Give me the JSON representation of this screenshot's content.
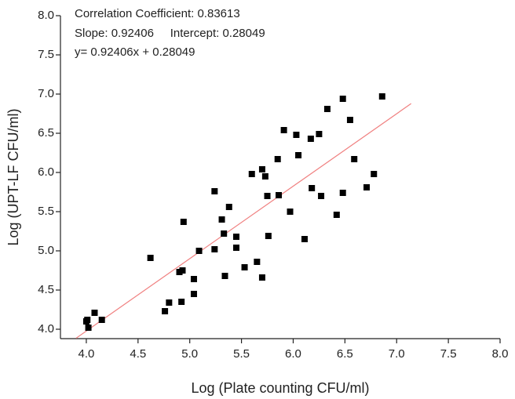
{
  "chart_data": {
    "type": "scatter",
    "annotations": [
      "Correlation Coefficient: 0.83613",
      "Slope: 0.92406     Intercept: 0.28049",
      "y= 0.92406x + 0.28049"
    ],
    "x_label": "Log (Plate counting CFU/ml)",
    "y_label": "Log (UPT-LF CFU/ml)",
    "xlim": [
      3.75,
      8.0
    ],
    "ylim": [
      3.88,
      8.0
    ],
    "xticks": [
      {
        "value": 4,
        "label": "4.0"
      },
      {
        "value": 4.5,
        "label": "4.5"
      },
      {
        "value": 5,
        "label": "5.0"
      },
      {
        "value": 5.5,
        "label": "5.5"
      },
      {
        "value": 6,
        "label": "6.0"
      },
      {
        "value": 6.5,
        "label": "6.5"
      },
      {
        "value": 7,
        "label": "7.0"
      },
      {
        "value": 7.5,
        "label": "7.5"
      },
      {
        "value": 8,
        "label": "8.0"
      }
    ],
    "yticks": [
      {
        "value": 4,
        "label": "4.0"
      },
      {
        "value": 4.5,
        "label": "4.5"
      },
      {
        "value": 5,
        "label": "5.0"
      },
      {
        "value": 5.5,
        "label": "5.5"
      },
      {
        "value": 6,
        "label": "6.0"
      },
      {
        "value": 6.5,
        "label": "6.5"
      },
      {
        "value": 7,
        "label": "7.0"
      },
      {
        "value": 7.5,
        "label": "7.5"
      },
      {
        "value": 8,
        "label": "8.0"
      }
    ],
    "color": "#000000",
    "x": [
      4.01,
      4.0,
      4.02,
      4.08,
      4.15,
      4.62,
      4.76,
      4.8,
      4.92,
      4.9,
      4.93,
      4.94,
      5.04,
      5.04,
      5.09,
      5.24,
      5.24,
      5.31,
      5.33,
      5.34,
      5.38,
      5.45,
      5.45,
      5.53,
      5.6,
      5.65,
      5.7,
      5.7,
      5.73,
      5.75,
      5.76,
      5.85,
      5.86,
      5.91,
      5.97,
      6.03,
      6.05,
      6.11,
      6.17,
      6.18,
      6.25,
      6.27,
      6.33,
      6.42,
      6.48,
      6.48,
      6.55,
      6.59,
      6.71,
      6.78,
      6.86
    ],
    "values": [
      4.12,
      4.1,
      4.02,
      4.21,
      4.12,
      4.91,
      4.23,
      4.34,
      4.35,
      4.73,
      4.75,
      5.37,
      4.64,
      4.45,
      5.0,
      5.76,
      5.02,
      5.4,
      5.22,
      4.68,
      5.56,
      5.04,
      5.18,
      4.79,
      5.98,
      4.86,
      6.04,
      4.66,
      5.95,
      5.7,
      5.19,
      6.17,
      5.71,
      6.54,
      5.5,
      6.48,
      6.22,
      5.15,
      6.43,
      5.8,
      6.49,
      5.7,
      6.81,
      5.46,
      6.94,
      5.74,
      6.67,
      6.17,
      5.81,
      5.98,
      6.97
    ],
    "fit": {
      "slope": 0.92406,
      "intercept": 0.28049,
      "x": [
        3.9,
        7.14
      ],
      "color": "#f08080"
    }
  }
}
